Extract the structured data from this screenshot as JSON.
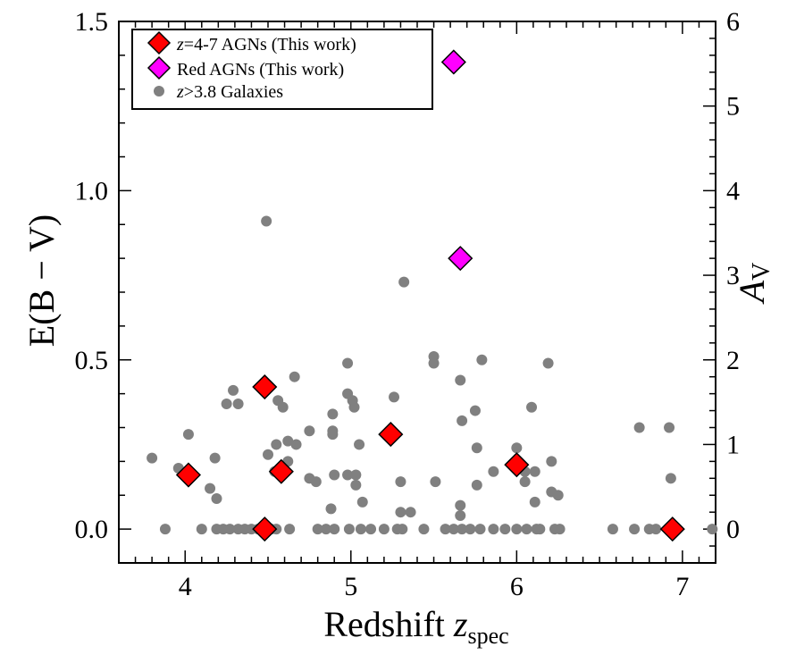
{
  "chart_data": {
    "type": "scatter",
    "xlabel": "Redshift",
    "xlabel_italic": "z",
    "xlabel_sub": "spec",
    "ylabel": "E(B − V)",
    "y2label": "A",
    "y2label_sub": "V",
    "xlim": [
      3.6,
      7.2
    ],
    "ylim": [
      -0.1,
      1.5
    ],
    "y2lim_note": "A_V = 4.0 × E(B−V)",
    "x_ticks": [
      {
        "value": 4,
        "label": "4"
      },
      {
        "value": 5,
        "label": "5"
      },
      {
        "value": 6,
        "label": "6"
      },
      {
        "value": 7,
        "label": "7"
      }
    ],
    "y_ticks": [
      {
        "value": 0.0,
        "label": "0.0"
      },
      {
        "value": 0.5,
        "label": "0.5"
      },
      {
        "value": 1.0,
        "label": "1.0"
      },
      {
        "value": 1.5,
        "label": "1.5"
      }
    ],
    "y2_ticks": [
      {
        "value": 0,
        "label": "0"
      },
      {
        "value": 1,
        "label": "1"
      },
      {
        "value": 2,
        "label": "2"
      },
      {
        "value": 3,
        "label": "3"
      },
      {
        "value": 4,
        "label": "4"
      },
      {
        "value": 5,
        "label": "5"
      },
      {
        "value": 6,
        "label": "6"
      }
    ],
    "legend": {
      "placement": "top-left",
      "entries": [
        {
          "italic": "z",
          "text": "=4-7 AGNs (This work)",
          "marker": "diamond",
          "color": "#ff0000"
        },
        {
          "italic": "",
          "text": "Red AGNs (This work)",
          "marker": "diamond",
          "color": "#ff00ff"
        },
        {
          "italic": "z",
          "text": ">3.8 Galaxies",
          "marker": "circle",
          "color": "#808080"
        }
      ]
    },
    "series": [
      {
        "name": "z=4-7 AGNs (This work)",
        "marker": "diamond",
        "color": "#ff0000",
        "points": [
          {
            "x": 4.02,
            "y": 0.16
          },
          {
            "x": 4.48,
            "y": 0.42
          },
          {
            "x": 4.48,
            "y": 0.0
          },
          {
            "x": 4.58,
            "y": 0.17
          },
          {
            "x": 5.24,
            "y": 0.28
          },
          {
            "x": 6.0,
            "y": 0.19
          },
          {
            "x": 6.94,
            "y": 0.0
          }
        ]
      },
      {
        "name": "Red AGNs (This work)",
        "marker": "diamond",
        "color": "#ff00ff",
        "points": [
          {
            "x": 5.62,
            "y": 1.38
          },
          {
            "x": 5.66,
            "y": 0.8
          }
        ]
      },
      {
        "name": "z>3.8 Galaxies",
        "marker": "circle",
        "color": "#808080",
        "points": [
          {
            "x": 3.8,
            "y": 0.21
          },
          {
            "x": 3.88,
            "y": 0.0
          },
          {
            "x": 3.96,
            "y": 0.18
          },
          {
            "x": 4.02,
            "y": 0.28
          },
          {
            "x": 4.1,
            "y": 0.0
          },
          {
            "x": 4.15,
            "y": 0.12
          },
          {
            "x": 4.18,
            "y": 0.21
          },
          {
            "x": 4.19,
            "y": 0.09
          },
          {
            "x": 4.19,
            "y": 0.0
          },
          {
            "x": 4.23,
            "y": 0.0
          },
          {
            "x": 4.25,
            "y": 0.37
          },
          {
            "x": 4.27,
            "y": 0.0
          },
          {
            "x": 4.29,
            "y": 0.41
          },
          {
            "x": 4.32,
            "y": 0.37
          },
          {
            "x": 4.32,
            "y": 0.0
          },
          {
            "x": 4.36,
            "y": 0.0
          },
          {
            "x": 4.4,
            "y": 0.0
          },
          {
            "x": 4.44,
            "y": 0.0
          },
          {
            "x": 4.49,
            "y": 0.91
          },
          {
            "x": 4.5,
            "y": 0.22
          },
          {
            "x": 4.52,
            "y": 0.0
          },
          {
            "x": 4.54,
            "y": 0.17
          },
          {
            "x": 4.55,
            "y": 0.25
          },
          {
            "x": 4.55,
            "y": 0.0
          },
          {
            "x": 4.56,
            "y": 0.38
          },
          {
            "x": 4.59,
            "y": 0.36
          },
          {
            "x": 4.62,
            "y": 0.26
          },
          {
            "x": 4.62,
            "y": 0.2
          },
          {
            "x": 4.63,
            "y": 0.0
          },
          {
            "x": 4.66,
            "y": 0.45
          },
          {
            "x": 4.67,
            "y": 0.25
          },
          {
            "x": 4.75,
            "y": 0.29
          },
          {
            "x": 4.75,
            "y": 0.15
          },
          {
            "x": 4.79,
            "y": 0.14
          },
          {
            "x": 4.8,
            "y": 0.0
          },
          {
            "x": 4.85,
            "y": 0.0
          },
          {
            "x": 4.88,
            "y": 0.06
          },
          {
            "x": 4.89,
            "y": 0.34
          },
          {
            "x": 4.89,
            "y": 0.29
          },
          {
            "x": 4.89,
            "y": 0.28
          },
          {
            "x": 4.9,
            "y": 0.16
          },
          {
            "x": 4.9,
            "y": 0.0
          },
          {
            "x": 4.98,
            "y": 0.49
          },
          {
            "x": 4.98,
            "y": 0.4
          },
          {
            "x": 4.98,
            "y": 0.16
          },
          {
            "x": 4.99,
            "y": 0.0
          },
          {
            "x": 5.01,
            "y": 0.38
          },
          {
            "x": 5.02,
            "y": 0.36
          },
          {
            "x": 5.03,
            "y": 0.16
          },
          {
            "x": 5.03,
            "y": 0.13
          },
          {
            "x": 5.05,
            "y": 0.25
          },
          {
            "x": 5.06,
            "y": 0.0
          },
          {
            "x": 5.07,
            "y": 0.08
          },
          {
            "x": 5.12,
            "y": 0.0
          },
          {
            "x": 5.2,
            "y": 0.0
          },
          {
            "x": 5.26,
            "y": 0.39
          },
          {
            "x": 5.28,
            "y": 0.0
          },
          {
            "x": 5.3,
            "y": 0.14
          },
          {
            "x": 5.3,
            "y": 0.05
          },
          {
            "x": 5.31,
            "y": 0.0
          },
          {
            "x": 5.32,
            "y": 0.73
          },
          {
            "x": 5.36,
            "y": 0.05
          },
          {
            "x": 5.44,
            "y": 0.0
          },
          {
            "x": 5.5,
            "y": 0.51
          },
          {
            "x": 5.5,
            "y": 0.49
          },
          {
            "x": 5.51,
            "y": 0.14
          },
          {
            "x": 5.57,
            "y": 0.0
          },
          {
            "x": 5.62,
            "y": 0.0
          },
          {
            "x": 5.66,
            "y": 0.44
          },
          {
            "x": 5.66,
            "y": 0.07
          },
          {
            "x": 5.66,
            "y": 0.04
          },
          {
            "x": 5.67,
            "y": 0.32
          },
          {
            "x": 5.67,
            "y": 0.0
          },
          {
            "x": 5.72,
            "y": 0.0
          },
          {
            "x": 5.75,
            "y": 0.35
          },
          {
            "x": 5.76,
            "y": 0.24
          },
          {
            "x": 5.76,
            "y": 0.13
          },
          {
            "x": 5.78,
            "y": 0.0
          },
          {
            "x": 5.79,
            "y": 0.5
          },
          {
            "x": 5.86,
            "y": 0.17
          },
          {
            "x": 5.86,
            "y": 0.0
          },
          {
            "x": 5.93,
            "y": 0.0
          },
          {
            "x": 6.0,
            "y": 0.24
          },
          {
            "x": 6.0,
            "y": 0.0
          },
          {
            "x": 6.05,
            "y": 0.17
          },
          {
            "x": 6.05,
            "y": 0.14
          },
          {
            "x": 6.06,
            "y": 0.0
          },
          {
            "x": 6.09,
            "y": 0.36
          },
          {
            "x": 6.11,
            "y": 0.17
          },
          {
            "x": 6.11,
            "y": 0.08
          },
          {
            "x": 6.12,
            "y": 0.0
          },
          {
            "x": 6.14,
            "y": 0.0
          },
          {
            "x": 6.19,
            "y": 0.49
          },
          {
            "x": 6.21,
            "y": 0.2
          },
          {
            "x": 6.21,
            "y": 0.11
          },
          {
            "x": 6.23,
            "y": 0.0
          },
          {
            "x": 6.25,
            "y": 0.1
          },
          {
            "x": 6.26,
            "y": 0.0
          },
          {
            "x": 6.58,
            "y": 0.0
          },
          {
            "x": 6.71,
            "y": 0.0
          },
          {
            "x": 6.74,
            "y": 0.3
          },
          {
            "x": 6.8,
            "y": 0.0
          },
          {
            "x": 6.84,
            "y": 0.0
          },
          {
            "x": 6.92,
            "y": 0.3
          },
          {
            "x": 6.93,
            "y": 0.15
          },
          {
            "x": 7.18,
            "y": 0.0
          }
        ]
      }
    ]
  }
}
